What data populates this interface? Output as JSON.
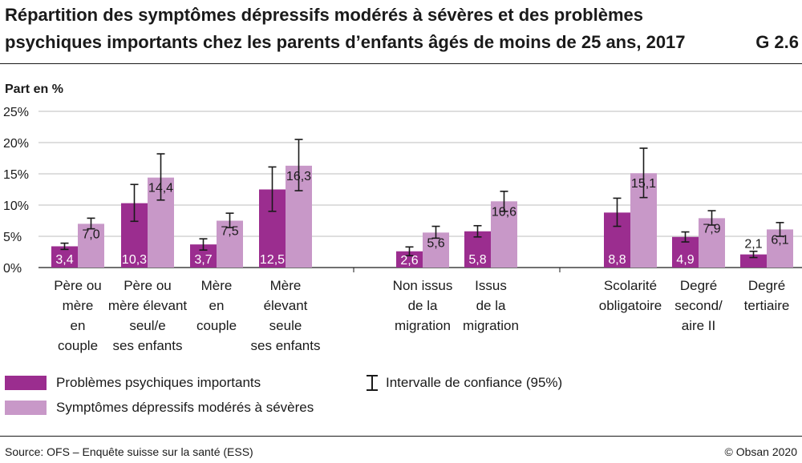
{
  "header": {
    "title_line1": "Répartition des symptômes dépressifs modérés à sévères et des problèmes",
    "title_line2": "psychiques importants chez les parents d’enfants âgés de moins de 25 ans, 2017",
    "figure_id": "G 2.6"
  },
  "chart_data": {
    "type": "bar",
    "title": "Répartition des symptômes dépressifs modérés à sévères et des problèmes psychiques importants chez les parents d’enfants âgés de moins de 25 ans, 2017",
    "ylabel": "Part en %",
    "xlabel": "",
    "ylim": [
      0,
      25
    ],
    "yticks": [
      "0%",
      "5%",
      "10%",
      "15%",
      "20%",
      "25%"
    ],
    "ytick_values": [
      0,
      5,
      10,
      15,
      20,
      25
    ],
    "grid": true,
    "categories": [
      [
        "Père ou",
        "mère",
        "en",
        "couple"
      ],
      [
        "Père ou",
        "mère élevant",
        "seul/e",
        "ses enfants"
      ],
      [
        "Mère",
        "en",
        "couple"
      ],
      [
        "Mère",
        "élevant",
        "seule",
        "ses enfants"
      ],
      [
        "Non issus",
        "de la",
        "migration"
      ],
      [
        "Issus",
        "de la",
        "migration"
      ],
      [
        "Scolarité",
        "obligatoire"
      ],
      [
        "Degré",
        "second/",
        "aire II"
      ],
      [
        "Degré",
        "tertiaire"
      ]
    ],
    "groups": [
      [
        0,
        1,
        2,
        3
      ],
      [
        4,
        5
      ],
      [
        6,
        7,
        8
      ]
    ],
    "series": [
      {
        "name": "Problèmes psychiques importants",
        "color": "#9b2d8f",
        "values": [
          3.4,
          10.3,
          3.7,
          12.5,
          2.6,
          5.8,
          8.8,
          4.9,
          2.1
        ],
        "labels": [
          "3,4",
          "10,3",
          "3,7",
          "12,5",
          "2,6",
          "5,8",
          "8,8",
          "4,9",
          "2,1"
        ],
        "ci_low": [
          2.9,
          7.4,
          2.8,
          9.0,
          1.9,
          4.9,
          6.6,
          4.1,
          1.6
        ],
        "ci_high": [
          3.9,
          13.3,
          4.6,
          16.1,
          3.3,
          6.7,
          11.1,
          5.7,
          2.6
        ]
      },
      {
        "name": "Symptômes dépressifs modérés à sévères",
        "color": "#c898c8",
        "values": [
          7.0,
          14.4,
          7.5,
          16.3,
          5.6,
          10.6,
          15.1,
          7.9,
          6.1
        ],
        "labels": [
          "7,0",
          "14,4",
          "7,5",
          "16,3",
          "5,6",
          "10,6",
          "15,1",
          "7,9",
          "6,1"
        ],
        "ci_low": [
          6.2,
          10.8,
          6.4,
          12.3,
          4.7,
          9.0,
          11.2,
          6.8,
          5.0
        ],
        "ci_high": [
          7.9,
          18.2,
          8.7,
          20.5,
          6.6,
          12.2,
          19.1,
          9.1,
          7.2
        ]
      }
    ],
    "confidence_interval_label": "Intervalle de confiance (95%)"
  },
  "legend": {
    "series1": "Problèmes psychiques importants",
    "series2": "Symptômes dépressifs modérés à sévères",
    "ci": "Intervalle de confiance (95%)"
  },
  "footer": {
    "source": "Source: OFS – Enquête suisse sur la santé (ESS)",
    "copyright": "© Obsan 2020"
  }
}
